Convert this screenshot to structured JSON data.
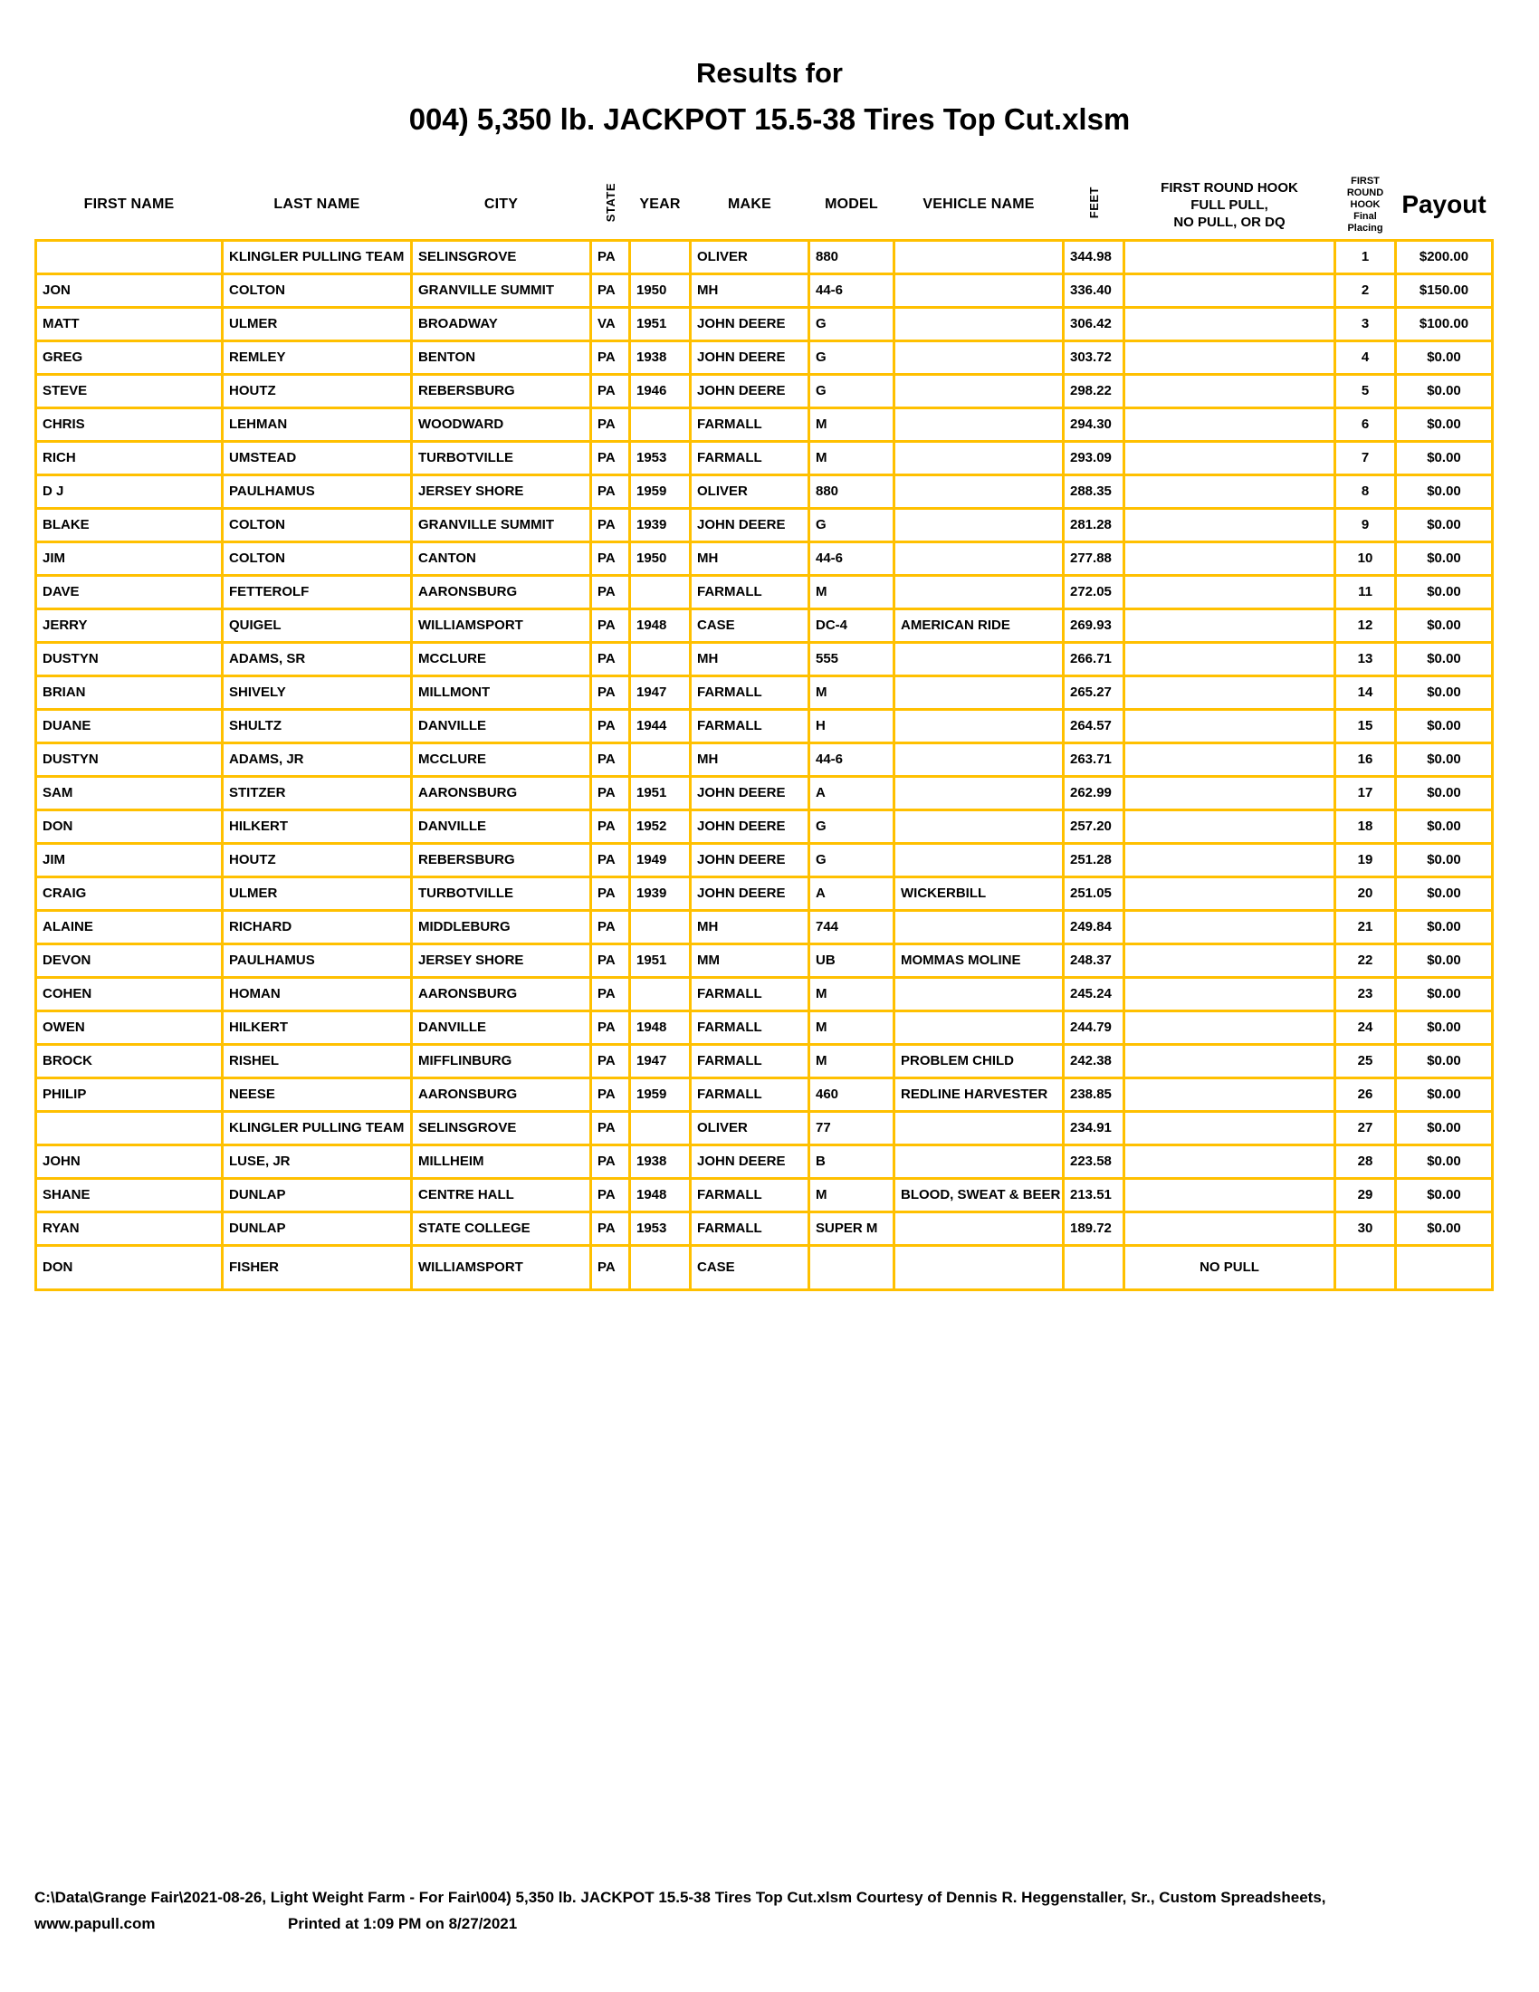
{
  "title": {
    "line1": "Results for",
    "line2": "004) 5,350 lb. JACKPOT 15.5-38 Tires Top Cut.xlsm"
  },
  "colors": {
    "grid": "#FFC000"
  },
  "table": {
    "headers": {
      "first_name": "FIRST NAME",
      "last_name": "LAST NAME",
      "city": "CITY",
      "state": "STATE",
      "year": "YEAR",
      "make": "MAKE",
      "model": "MODEL",
      "vehicle_name": "VEHICLE NAME",
      "feet": "FEET",
      "hook_lines": [
        "FIRST ROUND HOOK",
        "FULL PULL,",
        "NO PULL, OR DQ"
      ],
      "placing_lines": [
        "FIRST ROUND",
        "HOOK",
        "Final Placing"
      ],
      "payout": "Payout"
    },
    "rows": [
      [
        "",
        "KLINGLER PULLING TEAM",
        "SELINSGROVE",
        "PA",
        "",
        "OLIVER",
        "880",
        "",
        "344.98",
        "",
        "1",
        "$200.00"
      ],
      [
        "JON",
        "COLTON",
        "GRANVILLE SUMMIT",
        "PA",
        "1950",
        "MH",
        "44-6",
        "",
        "336.40",
        "",
        "2",
        "$150.00"
      ],
      [
        "MATT",
        "ULMER",
        "BROADWAY",
        "VA",
        "1951",
        "JOHN DEERE",
        "G",
        "",
        "306.42",
        "",
        "3",
        "$100.00"
      ],
      [
        "GREG",
        "REMLEY",
        "BENTON",
        "PA",
        "1938",
        "JOHN DEERE",
        "G",
        "",
        "303.72",
        "",
        "4",
        "$0.00"
      ],
      [
        "STEVE",
        "HOUTZ",
        "REBERSBURG",
        "PA",
        "1946",
        "JOHN DEERE",
        "G",
        "",
        "298.22",
        "",
        "5",
        "$0.00"
      ],
      [
        "CHRIS",
        "LEHMAN",
        "WOODWARD",
        "PA",
        "",
        "FARMALL",
        "M",
        "",
        "294.30",
        "",
        "6",
        "$0.00"
      ],
      [
        "RICH",
        "UMSTEAD",
        "TURBOTVILLE",
        "PA",
        "1953",
        "FARMALL",
        "M",
        "",
        "293.09",
        "",
        "7",
        "$0.00"
      ],
      [
        "D J",
        "PAULHAMUS",
        "JERSEY SHORE",
        "PA",
        "1959",
        "OLIVER",
        "880",
        "",
        "288.35",
        "",
        "8",
        "$0.00"
      ],
      [
        "BLAKE",
        "COLTON",
        "GRANVILLE SUMMIT",
        "PA",
        "1939",
        "JOHN DEERE",
        "G",
        "",
        "281.28",
        "",
        "9",
        "$0.00"
      ],
      [
        "JIM",
        "COLTON",
        "CANTON",
        "PA",
        "1950",
        "MH",
        "44-6",
        "",
        "277.88",
        "",
        "10",
        "$0.00"
      ],
      [
        "DAVE",
        "FETTEROLF",
        "AARONSBURG",
        "PA",
        "",
        "FARMALL",
        "M",
        "",
        "272.05",
        "",
        "11",
        "$0.00"
      ],
      [
        "JERRY",
        "QUIGEL",
        "WILLIAMSPORT",
        "PA",
        "1948",
        "CASE",
        "DC-4",
        "AMERICAN RIDE",
        "269.93",
        "",
        "12",
        "$0.00"
      ],
      [
        "DUSTYN",
        "ADAMS, SR",
        "MCCLURE",
        "PA",
        "",
        "MH",
        "555",
        "",
        "266.71",
        "",
        "13",
        "$0.00"
      ],
      [
        "BRIAN",
        "SHIVELY",
        "MILLMONT",
        "PA",
        "1947",
        "FARMALL",
        "M",
        "",
        "265.27",
        "",
        "14",
        "$0.00"
      ],
      [
        "DUANE",
        "SHULTZ",
        "DANVILLE",
        "PA",
        "1944",
        "FARMALL",
        "H",
        "",
        "264.57",
        "",
        "15",
        "$0.00"
      ],
      [
        "DUSTYN",
        "ADAMS, JR",
        "MCCLURE",
        "PA",
        "",
        "MH",
        "44-6",
        "",
        "263.71",
        "",
        "16",
        "$0.00"
      ],
      [
        "SAM",
        "STITZER",
        "AARONSBURG",
        "PA",
        "1951",
        "JOHN DEERE",
        "A",
        "",
        "262.99",
        "",
        "17",
        "$0.00"
      ],
      [
        "DON",
        "HILKERT",
        "DANVILLE",
        "PA",
        "1952",
        "JOHN DEERE",
        "G",
        "",
        "257.20",
        "",
        "18",
        "$0.00"
      ],
      [
        "JIM",
        "HOUTZ",
        "REBERSBURG",
        "PA",
        "1949",
        "JOHN DEERE",
        "G",
        "",
        "251.28",
        "",
        "19",
        "$0.00"
      ],
      [
        "CRAIG",
        "ULMER",
        "TURBOTVILLE",
        "PA",
        "1939",
        "JOHN DEERE",
        "A",
        "WICKERBILL",
        "251.05",
        "",
        "20",
        "$0.00"
      ],
      [
        "ALAINE",
        "RICHARD",
        "MIDDLEBURG",
        "PA",
        "",
        "MH",
        "744",
        "",
        "249.84",
        "",
        "21",
        "$0.00"
      ],
      [
        "DEVON",
        "PAULHAMUS",
        "JERSEY SHORE",
        "PA",
        "1951",
        "MM",
        "UB",
        "MOMMAS MOLINE",
        "248.37",
        "",
        "22",
        "$0.00"
      ],
      [
        "COHEN",
        "HOMAN",
        "AARONSBURG",
        "PA",
        "",
        "FARMALL",
        "M",
        "",
        "245.24",
        "",
        "23",
        "$0.00"
      ],
      [
        "OWEN",
        "HILKERT",
        "DANVILLE",
        "PA",
        "1948",
        "FARMALL",
        "M",
        "",
        "244.79",
        "",
        "24",
        "$0.00"
      ],
      [
        "BROCK",
        "RISHEL",
        "MIFFLINBURG",
        "PA",
        "1947",
        "FARMALL",
        "M",
        "PROBLEM CHILD",
        "242.38",
        "",
        "25",
        "$0.00"
      ],
      [
        "PHILIP",
        "NEESE",
        "AARONSBURG",
        "PA",
        "1959",
        "FARMALL",
        "460",
        "REDLINE HARVESTER",
        "238.85",
        "",
        "26",
        "$0.00"
      ],
      [
        "",
        "KLINGLER PULLING TEAM",
        "SELINSGROVE",
        "PA",
        "",
        "OLIVER",
        "77",
        "",
        "234.91",
        "",
        "27",
        "$0.00"
      ],
      [
        "JOHN",
        "LUSE, JR",
        "MILLHEIM",
        "PA",
        "1938",
        "JOHN DEERE",
        "B",
        "",
        "223.58",
        "",
        "28",
        "$0.00"
      ],
      [
        "SHANE",
        "DUNLAP",
        "CENTRE HALL",
        "PA",
        "1948",
        "FARMALL",
        "M",
        "BLOOD, SWEAT & BEER",
        "213.51",
        "",
        "29",
        "$0.00"
      ],
      [
        "RYAN",
        "DUNLAP",
        "STATE COLLEGE",
        "PA",
        "1953",
        "FARMALL",
        "SUPER M",
        "",
        "189.72",
        "",
        "30",
        "$0.00"
      ],
      [
        "DON",
        "FISHER",
        "WILLIAMSPORT",
        "PA",
        "",
        "CASE",
        "",
        "",
        "",
        "NO PULL",
        "",
        ""
      ]
    ]
  },
  "footer": {
    "line1": "C:\\Data\\Grange Fair\\2021-08-26, Light Weight Farm - For Fair\\004) 5,350 lb. JACKPOT 15.5-38 Tires Top Cut.xlsm  Courtesy of Dennis R. Heggenstaller, Sr., Custom Spreadsheets,",
    "website": "www.papull.com",
    "printed": "Printed at 1:09 PM on 8/27/2021"
  }
}
